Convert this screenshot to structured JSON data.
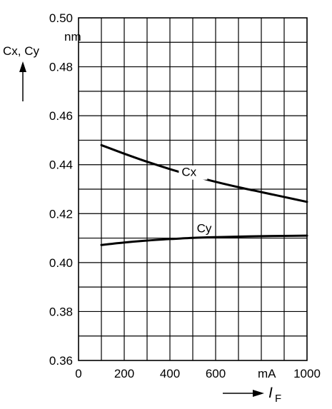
{
  "chart_data": {
    "type": "line",
    "title": "",
    "ylabel": "Cx, Cy",
    "yunit": "nm",
    "xlabel": "I",
    "xlabel_subscript": "F",
    "xunit": "mA",
    "xlim": [
      0,
      1000
    ],
    "ylim": [
      0.36,
      0.5
    ],
    "x_ticks": [
      0,
      200,
      400,
      600,
      1000
    ],
    "x_tick_labels": [
      "0",
      "200",
      "400",
      "600",
      "1000"
    ],
    "y_ticks": [
      0.36,
      0.38,
      0.4,
      0.42,
      0.44,
      0.46,
      0.48,
      0.5
    ],
    "y_tick_labels": [
      "0.36",
      "0.38",
      "0.40",
      "0.42",
      "0.44",
      "0.46",
      "0.48",
      "0.50"
    ],
    "grid": true,
    "series": [
      {
        "name": "Cx",
        "x": [
          100,
          200,
          300,
          400,
          500,
          600,
          700,
          800,
          900,
          1000
        ],
        "y": [
          0.448,
          0.4445,
          0.4412,
          0.4382,
          0.4355,
          0.433,
          0.4308,
          0.4288,
          0.4268,
          0.4248
        ]
      },
      {
        "name": "Cy",
        "x": [
          100,
          200,
          300,
          400,
          500,
          600,
          700,
          800,
          900,
          1000
        ],
        "y": [
          0.4072,
          0.4082,
          0.409,
          0.4096,
          0.4101,
          0.4104,
          0.4106,
          0.4108,
          0.4109,
          0.411
        ]
      }
    ]
  }
}
